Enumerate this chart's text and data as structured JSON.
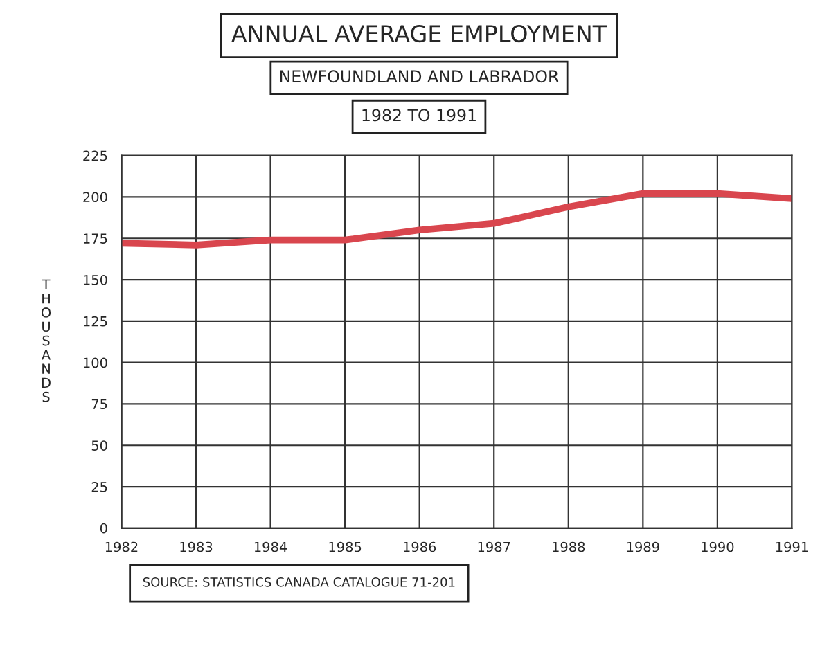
{
  "chart_data": {
    "type": "line",
    "title": "ANNUAL AVERAGE EMPLOYMENT",
    "subtitle": [
      "NEWFOUNDLAND AND LABRADOR",
      "1982 TO 1991"
    ],
    "ylabel": "THOUSANDS",
    "x": [
      1982,
      1983,
      1984,
      1985,
      1986,
      1987,
      1988,
      1989,
      1990,
      1991
    ],
    "series": [
      {
        "color": "#d9464e",
        "values": [
          172,
          171,
          174,
          174,
          180,
          184,
          194,
          202,
          202,
          199
        ]
      }
    ],
    "xlim": [
      1982,
      1991
    ],
    "xticks": [
      1982,
      1983,
      1984,
      1985,
      1986,
      1987,
      1988,
      1989,
      1990,
      1991
    ],
    "ylim": [
      0,
      225
    ],
    "yticks": [
      0,
      25,
      50,
      75,
      100,
      125,
      150,
      175,
      200,
      225
    ],
    "grid": true,
    "legend": false,
    "marker": "none",
    "line_style": "solid",
    "annotations": [
      "SOURCE: STATISTICS CANADA CATALOGUE 71-201"
    ]
  }
}
